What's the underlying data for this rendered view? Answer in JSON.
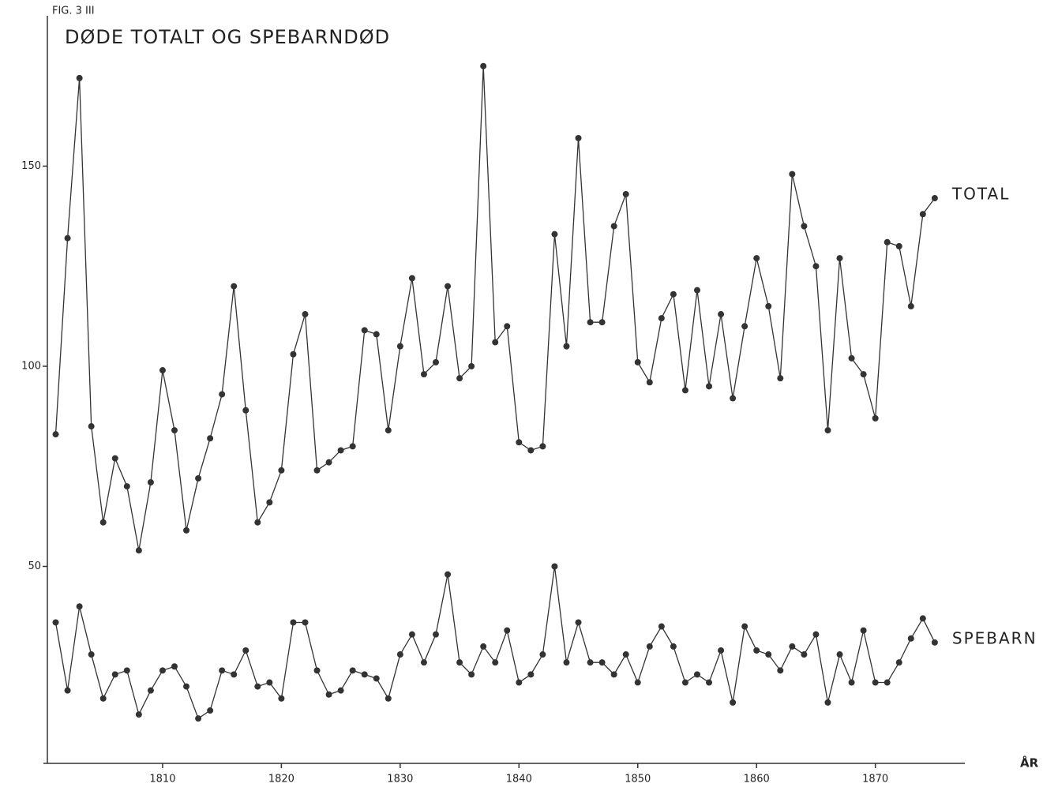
{
  "chart_data": {
    "type": "line",
    "figure_label": "FIG. 3 III",
    "title": "DØDE TOTALT OG SPEBARNDØD",
    "x_label": "ÅR",
    "x": [
      1801,
      1802,
      1803,
      1804,
      1805,
      1806,
      1807,
      1808,
      1809,
      1810,
      1811,
      1812,
      1813,
      1814,
      1815,
      1816,
      1817,
      1818,
      1819,
      1820,
      1821,
      1822,
      1823,
      1824,
      1825,
      1826,
      1827,
      1828,
      1829,
      1830,
      1831,
      1832,
      1833,
      1834,
      1835,
      1836,
      1837,
      1838,
      1839,
      1840,
      1841,
      1842,
      1843,
      1844,
      1845,
      1846,
      1847,
      1848,
      1849,
      1850,
      1851,
      1852,
      1853,
      1854,
      1855,
      1856,
      1857,
      1858,
      1859,
      1860,
      1861,
      1862,
      1863,
      1864,
      1865,
      1866,
      1867,
      1868,
      1869,
      1870,
      1871,
      1872,
      1873,
      1874,
      1875
    ],
    "series": [
      {
        "name": "TOTAL",
        "color": "#333333",
        "values": [
          83,
          132,
          172,
          85,
          61,
          77,
          70,
          54,
          71,
          99,
          84,
          59,
          72,
          82,
          93,
          120,
          89,
          61,
          66,
          74,
          103,
          113,
          74,
          76,
          79,
          80,
          109,
          108,
          84,
          105,
          122,
          98,
          101,
          120,
          97,
          100,
          175,
          106,
          110,
          81,
          79,
          80,
          133,
          105,
          157,
          111,
          111,
          135,
          143,
          101,
          96,
          112,
          118,
          94,
          119,
          95,
          113,
          92,
          110,
          127,
          115,
          97,
          148,
          135,
          125,
          84,
          127,
          102,
          98,
          87,
          131,
          130,
          115,
          138,
          142
        ]
      },
      {
        "name": "SPEBARN",
        "color": "#333333",
        "values": [
          36,
          19,
          40,
          28,
          17,
          23,
          24,
          13,
          19,
          24,
          25,
          20,
          12,
          14,
          24,
          23,
          29,
          20,
          21,
          17,
          36,
          36,
          24,
          18,
          19,
          24,
          23,
          22,
          17,
          28,
          33,
          26,
          33,
          48,
          26,
          23,
          30,
          26,
          34,
          21,
          23,
          28,
          50,
          26,
          36,
          26,
          26,
          23,
          28,
          21,
          30,
          35,
          30,
          21,
          23,
          21,
          29,
          16,
          35,
          29,
          28,
          24,
          30,
          28,
          33,
          16,
          28,
          21,
          34,
          21,
          21,
          26,
          32,
          37,
          31
        ]
      }
    ],
    "xlim": [
      1800.3,
      1877.4
    ],
    "xticks": [
      1810,
      1820,
      1830,
      1840,
      1850,
      1860,
      1870
    ],
    "ylim": [
      0,
      185
    ],
    "yticks": [
      50,
      100,
      150
    ]
  }
}
